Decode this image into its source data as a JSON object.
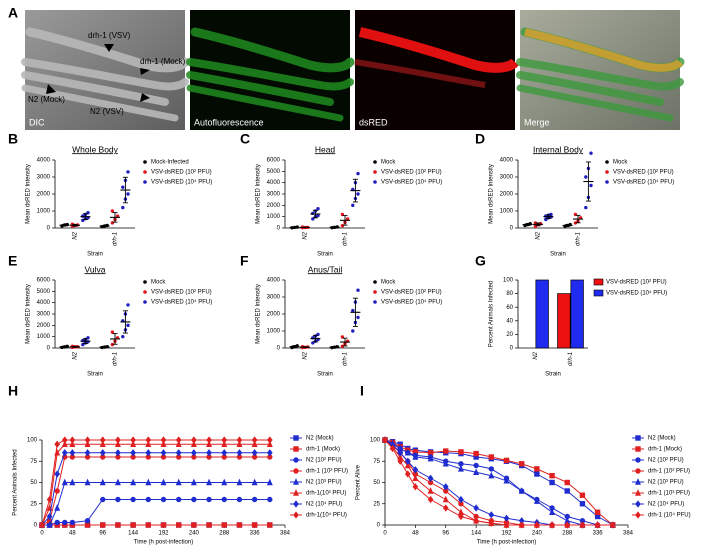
{
  "micrographs": {
    "label": "A",
    "captions": [
      "DIC",
      "Autofluorescence",
      "dsRED",
      "Merge"
    ],
    "annotations": [
      "drh-1 (VSV)",
      "drh-1 (Mock)",
      "N2 (Mock)",
      "N2 (VSV)"
    ]
  },
  "chart_data": [
    {
      "panel": "B",
      "type": "dotplot",
      "title": "Whole Body",
      "y_label": "Mean dsRED Intensity",
      "x_label": "Strain",
      "categories": [
        "N2",
        "drh-1"
      ],
      "ylim": [
        0,
        4000
      ],
      "yticks": [
        0,
        1000,
        2000,
        3000,
        4000
      ],
      "series": [
        {
          "name": "Mock-Infected",
          "color": "#000000",
          "points": [
            [
              120,
              180,
              200
            ],
            [
              80,
              120,
              150
            ]
          ],
          "means": [
            167,
            117
          ],
          "errors": [
            40,
            35
          ]
        },
        {
          "name": "VSV-dsRED (10² PFU)",
          "color": "#e8141c",
          "points": [
            [
              100,
              150,
              180,
              220
            ],
            [
              300,
              500,
              700,
              1000
            ]
          ],
          "means": [
            163,
            625
          ],
          "errors": [
            50,
            280
          ]
        },
        {
          "name": "VSV-dsRED (10⁴ PFU)",
          "color": "#1f1fbf",
          "points": [
            [
              450,
              550,
              600,
              700,
              800,
              900
            ],
            [
              1200,
              1700,
              2000,
              2400,
              2800,
              3300
            ]
          ],
          "means": [
            667,
            2233
          ],
          "errors": [
            170,
            750
          ]
        }
      ]
    },
    {
      "panel": "C",
      "type": "dotplot",
      "title": "Head",
      "y_label": "Mean dsRED Intensity",
      "x_label": "Strain",
      "categories": [
        "N2",
        "drh-1"
      ],
      "ylim": [
        0,
        6000
      ],
      "yticks": [
        0,
        1000,
        2000,
        3000,
        4000,
        5000,
        6000
      ],
      "series": [
        {
          "name": "Mock",
          "color": "#000000",
          "points": [
            [
              20,
              50,
              80
            ],
            [
              30,
              60,
              90
            ]
          ],
          "means": [
            50,
            60
          ],
          "errors": [
            30,
            30
          ]
        },
        {
          "name": "VSV-dsRED (10² PFU)",
          "color": "#e8141c",
          "points": [
            [
              20,
              40,
              60,
              80
            ],
            [
              200,
              500,
              800,
              1200
            ]
          ],
          "means": [
            50,
            675
          ],
          "errors": [
            25,
            420
          ]
        },
        {
          "name": "VSV-dsRED (10⁴ PFU)",
          "color": "#1f1fbf",
          "points": [
            [
              800,
              1000,
              1100,
              1300,
              1500,
              1700
            ],
            [
              2000,
              2600,
              3000,
              3400,
              4000,
              4800
            ]
          ],
          "means": [
            1233,
            3300
          ],
          "errors": [
            330,
            1000
          ]
        }
      ]
    },
    {
      "panel": "D",
      "type": "dotplot",
      "title": "Internal Body",
      "y_label": "Mean dsRED Intensity",
      "x_label": "Strain",
      "categories": [
        "N2",
        "drh-1"
      ],
      "ylim": [
        0,
        4000
      ],
      "yticks": [
        0,
        1000,
        2000,
        3000,
        4000
      ],
      "series": [
        {
          "name": "Mock",
          "color": "#000000",
          "points": [
            [
              150,
              200,
              250
            ],
            [
              100,
              150,
              200
            ]
          ],
          "means": [
            200,
            150
          ],
          "errors": [
            50,
            50
          ]
        },
        {
          "name": "VSV-dsRED (10² PFU)",
          "color": "#e8141c",
          "points": [
            [
              100,
              200,
              250,
              300
            ],
            [
              300,
              400,
              600,
              800
            ]
          ],
          "means": [
            213,
            525
          ],
          "errors": [
            85,
            220
          ]
        },
        {
          "name": "VSV-dsRED (10⁴ PFU)",
          "color": "#1f1fbf",
          "points": [
            [
              500,
              600,
              650,
              700,
              750,
              800
            ],
            [
              1200,
              1800,
              2500,
              3000,
              3500,
              4400
            ]
          ],
          "means": [
            667,
            2733
          ],
          "errors": [
            110,
            1150
          ]
        }
      ]
    },
    {
      "panel": "E",
      "type": "dotplot",
      "title": "Vulva",
      "y_label": "Mean dsRED Intensity",
      "x_label": "Strain",
      "categories": [
        "N2",
        "drh-1"
      ],
      "ylim": [
        0,
        6000
      ],
      "yticks": [
        0,
        1000,
        2000,
        3000,
        4000,
        5000,
        6000
      ],
      "series": [
        {
          "name": "Mock",
          "color": "#000000",
          "points": [
            [
              50,
              100,
              150
            ],
            [
              40,
              80,
              120
            ]
          ],
          "means": [
            100,
            80
          ],
          "errors": [
            50,
            40
          ]
        },
        {
          "name": "VSV-dsRED (10² PFU)",
          "color": "#e8141c",
          "points": [
            [
              50,
              100,
              120,
              150
            ],
            [
              300,
              600,
              900,
              1400
            ]
          ],
          "means": [
            105,
            800
          ],
          "errors": [
            42,
            470
          ]
        },
        {
          "name": "VSV-dsRED (10⁴ PFU)",
          "color": "#1f1fbf",
          "points": [
            [
              300,
              450,
              550,
              650,
              750,
              900
            ],
            [
              1000,
              1600,
              2000,
              2400,
              3000,
              3800
            ]
          ],
          "means": [
            600,
            2300
          ],
          "errors": [
            210,
            980
          ]
        }
      ]
    },
    {
      "panel": "F",
      "type": "dotplot",
      "title": "Anus/Tail",
      "y_label": "Mean dsRED Intensity",
      "x_label": "Strain",
      "categories": [
        "N2",
        "drh-1"
      ],
      "ylim": [
        0,
        4000
      ],
      "yticks": [
        0,
        1000,
        2000,
        3000,
        4000
      ],
      "series": [
        {
          "name": "Mock",
          "color": "#000000",
          "points": [
            [
              30,
              80,
              130
            ],
            [
              20,
              50,
              80
            ]
          ],
          "means": [
            80,
            50
          ],
          "errors": [
            50,
            30
          ]
        },
        {
          "name": "VSV-dsRED (10² PFU)",
          "color": "#e8141c",
          "points": [
            [
              20,
              40,
              60,
              80
            ],
            [
              100,
              250,
              400,
              650
            ]
          ],
          "means": [
            50,
            350
          ],
          "errors": [
            26,
            230
          ]
        },
        {
          "name": "VSV-dsRED (10⁴ PFU)",
          "color": "#1f1fbf",
          "points": [
            [
              300,
              400,
              500,
              600,
              700,
              800
            ],
            [
              1000,
              1500,
              1800,
              2200,
              2700,
              3400
            ]
          ],
          "means": [
            550,
            2100
          ],
          "errors": [
            190,
            830
          ]
        }
      ]
    },
    {
      "panel": "G",
      "type": "bar",
      "y_label": "Percent Animals Infected",
      "x_label": "Strain",
      "categories": [
        "N2",
        "drh-1"
      ],
      "ylim": [
        0,
        100
      ],
      "yticks": [
        0,
        20,
        40,
        60,
        80,
        100
      ],
      "series": [
        {
          "name": "VSV-dsRED (10² PFU)",
          "color": "#ee1111",
          "values": [
            0,
            80
          ]
        },
        {
          "name": "VSV-dsRED (10⁴ PFU)",
          "color": "#1f2cf0",
          "values": [
            100,
            100
          ]
        }
      ]
    },
    {
      "panel": "H",
      "type": "line",
      "y_label": "Percent Animals Infected",
      "x_label": "Time (h post-infection)",
      "x": [
        0,
        12,
        24,
        36,
        48,
        72,
        96,
        120,
        144,
        168,
        192,
        216,
        240,
        264,
        288,
        312,
        336,
        360
      ],
      "xlim": [
        0,
        384
      ],
      "xticks": [
        0,
        48,
        96,
        144,
        192,
        240,
        288,
        336,
        384
      ],
      "ylim": [
        0,
        100
      ],
      "yticks": [
        0,
        25,
        50,
        75,
        100
      ],
      "series": [
        {
          "name": "N2 (Mock)",
          "color": "#1f2cd0",
          "marker": "square",
          "values": [
            0,
            0,
            0,
            0,
            0,
            0,
            0,
            0,
            0,
            0,
            0,
            0,
            0,
            0,
            0,
            0,
            0,
            0
          ]
        },
        {
          "name": "drh-1 (Mock)",
          "color": "#e02020",
          "marker": "square",
          "values": [
            0,
            0,
            0,
            0,
            0,
            0,
            0,
            0,
            0,
            0,
            0,
            0,
            0,
            0,
            0,
            0,
            0,
            0
          ]
        },
        {
          "name": "N2 (10² PFU)",
          "color": "#1f2cd0",
          "marker": "circle",
          "values": [
            0,
            0,
            3,
            3,
            3,
            5,
            30,
            30,
            30,
            30,
            30,
            30,
            30,
            30,
            30,
            30,
            30,
            30
          ]
        },
        {
          "name": "drh-1 (10² PFU)",
          "color": "#e02020",
          "marker": "circle",
          "values": [
            0,
            5,
            40,
            80,
            80,
            80,
            80,
            80,
            80,
            80,
            80,
            80,
            80,
            80,
            80,
            80,
            80,
            80
          ]
        },
        {
          "name": "N2 (10³ PFU)",
          "color": "#1f2cd0",
          "marker": "triangle",
          "values": [
            0,
            0,
            20,
            50,
            50,
            50,
            50,
            50,
            50,
            50,
            50,
            50,
            50,
            50,
            50,
            50,
            50,
            50
          ]
        },
        {
          "name": "drh-1(10³ PFU)",
          "color": "#e02020",
          "marker": "triangle",
          "values": [
            0,
            20,
            85,
            95,
            95,
            95,
            95,
            95,
            95,
            95,
            95,
            95,
            95,
            95,
            95,
            95,
            95,
            95
          ]
        },
        {
          "name": "N2 (10⁴ PFU)",
          "color": "#1f2cd0",
          "marker": "diamond",
          "values": [
            0,
            10,
            60,
            85,
            85,
            85,
            85,
            85,
            85,
            85,
            85,
            85,
            85,
            85,
            85,
            85,
            85,
            85
          ]
        },
        {
          "name": "drh-1(10⁴ PFU)",
          "color": "#e02020",
          "marker": "diamond",
          "values": [
            0,
            30,
            95,
            100,
            100,
            100,
            100,
            100,
            100,
            100,
            100,
            100,
            100,
            100,
            100,
            100,
            100,
            100
          ]
        }
      ]
    },
    {
      "panel": "I",
      "type": "line",
      "y_label": "Percent Alive",
      "x_label": "Time (h post-infection)",
      "x": [
        0,
        12,
        24,
        36,
        48,
        72,
        96,
        120,
        144,
        168,
        192,
        216,
        240,
        264,
        288,
        312,
        336,
        360
      ],
      "xlim": [
        0,
        384
      ],
      "xticks": [
        0,
        48,
        96,
        144,
        192,
        240,
        288,
        336,
        384
      ],
      "ylim": [
        0,
        100
      ],
      "yticks": [
        0,
        25,
        50,
        75,
        100
      ],
      "series": [
        {
          "name": "N2 (Mock)",
          "color": "#1f2cd0",
          "marker": "square",
          "values": [
            100,
            98,
            95,
            90,
            88,
            86,
            85,
            84,
            80,
            78,
            75,
            70,
            60,
            50,
            40,
            25,
            10,
            0
          ]
        },
        {
          "name": "drh-1 (Mock)",
          "color": "#e02020",
          "marker": "square",
          "values": [
            100,
            97,
            92,
            88,
            86,
            85,
            87,
            86,
            84,
            80,
            76,
            72,
            66,
            58,
            50,
            35,
            15,
            0
          ]
        },
        {
          "name": "N2 (10² PFU)",
          "color": "#1f2cd0",
          "marker": "circle",
          "values": [
            100,
            95,
            90,
            85,
            82,
            80,
            75,
            72,
            70,
            66,
            55,
            40,
            30,
            20,
            10,
            5,
            0,
            0
          ]
        },
        {
          "name": "drh-1 (10² PFU)",
          "color": "#e02020",
          "marker": "circle",
          "values": [
            100,
            95,
            85,
            75,
            60,
            50,
            40,
            25,
            10,
            5,
            3,
            0,
            0,
            0,
            0,
            0,
            0,
            0
          ]
        },
        {
          "name": "N2 (10³ PFU)",
          "color": "#1f2cd0",
          "marker": "triangle",
          "values": [
            100,
            96,
            90,
            85,
            80,
            78,
            72,
            66,
            62,
            58,
            52,
            40,
            28,
            15,
            5,
            0,
            0,
            0
          ]
        },
        {
          "name": "drh-1 (10³ PFU)",
          "color": "#e02020",
          "marker": "triangle",
          "values": [
            100,
            92,
            80,
            70,
            55,
            40,
            30,
            15,
            5,
            2,
            0,
            0,
            0,
            0,
            0,
            0,
            0,
            0
          ]
        },
        {
          "name": "N2 (10⁴ PFU)",
          "color": "#1f2cd0",
          "marker": "diamond",
          "values": [
            100,
            94,
            85,
            75,
            65,
            55,
            45,
            30,
            20,
            12,
            8,
            5,
            3,
            0,
            0,
            0,
            0,
            0
          ]
        },
        {
          "name": "drh-1 (10⁴ PFU)",
          "color": "#e02020",
          "marker": "diamond",
          "values": [
            100,
            90,
            75,
            60,
            45,
            30,
            20,
            10,
            5,
            2,
            0,
            0,
            0,
            0,
            0,
            0,
            0,
            0
          ]
        }
      ]
    }
  ]
}
